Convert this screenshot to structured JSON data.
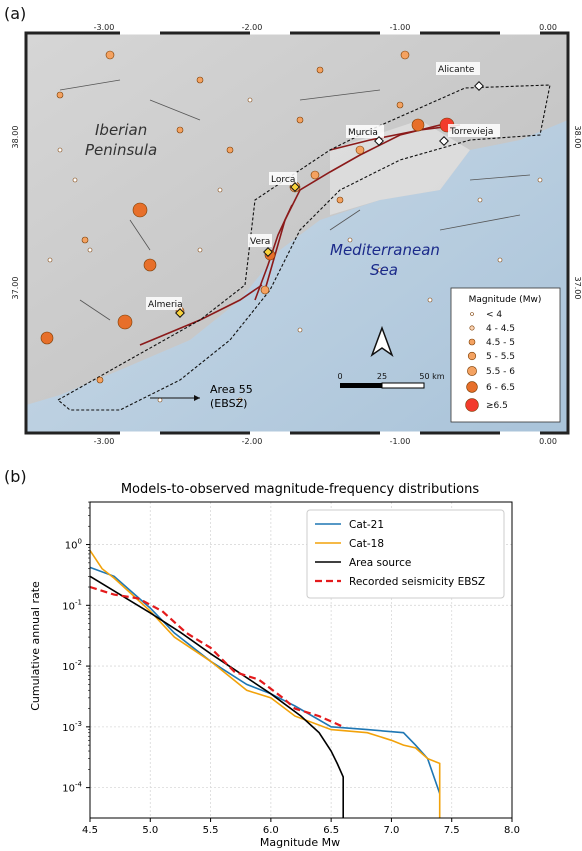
{
  "panel_a_label": "(a)",
  "panel_b_label": "(b)",
  "map": {
    "lon_ticks": [
      "-3.00",
      "-2.00",
      "-1.00",
      "0.00"
    ],
    "lat_ticks": [
      "38.00",
      "37.00"
    ],
    "region_labels": {
      "iberian": "Iberian",
      "peninsula": "Peninsula",
      "mediterranean": "Mediterranean",
      "sea": "Sea"
    },
    "cities": [
      "Alicante",
      "Murcia",
      "Torrevieja",
      "Lorca",
      "Vera",
      "Almeria"
    ],
    "area_label_line1": "Area 55",
    "area_label_line2": "(EBSZ)",
    "scale_labels": [
      "0",
      "25",
      "50 km"
    ],
    "legend": {
      "title": "Magnitude (Mw)",
      "items": [
        "< 4",
        "4 - 4.5",
        "4.5 - 5",
        "5 - 5.5",
        "5.5 - 6",
        "6 - 6.5",
        "≥6.5"
      ]
    },
    "colors": {
      "sea": "#b9cfe0",
      "land": "#c9c9c9",
      "fault": "#8b1a1a",
      "zone": "#111111"
    }
  },
  "chart_data": {
    "type": "line",
    "title": "Models-to-observed magnitude-frequency distributions",
    "xlabel": "Magnitude Mw",
    "ylabel": "Cumulative annual rate",
    "xlim": [
      4.5,
      8.0
    ],
    "ylim_log10": [
      -4.5,
      0.7
    ],
    "yscale": "log",
    "grid": true,
    "legend_position": "top-right",
    "x_tick_labels": [
      "4.5",
      "5.0",
      "5.5",
      "6.0",
      "6.5",
      "7.0",
      "7.5",
      "8.0"
    ],
    "series": [
      {
        "name": "Cat-21",
        "color": "#1f77b4",
        "dash": "",
        "x": [
          4.5,
          4.7,
          5.0,
          5.2,
          5.5,
          5.8,
          6.0,
          6.2,
          6.5,
          6.8,
          7.1,
          7.2,
          7.3,
          7.4
        ],
        "y": [
          0.42,
          0.3,
          0.09,
          0.035,
          0.012,
          0.005,
          0.0035,
          0.0022,
          0.001,
          0.0009,
          0.0008,
          0.0005,
          0.0003,
          8e-05
        ]
      },
      {
        "name": "Cat-18",
        "color": "#f2a20a",
        "dash": "",
        "x": [
          4.5,
          4.6,
          4.7,
          5.0,
          5.2,
          5.5,
          5.8,
          6.0,
          6.2,
          6.5,
          6.8,
          7.0,
          7.1,
          7.2,
          7.3,
          7.4,
          7.4
        ],
        "y": [
          0.8,
          0.4,
          0.28,
          0.08,
          0.03,
          0.012,
          0.004,
          0.003,
          0.0015,
          0.0009,
          0.0008,
          0.0006,
          0.0005,
          0.00045,
          0.0003,
          0.00025,
          3e-05
        ]
      },
      {
        "name": "Area source",
        "color": "#000000",
        "dash": "",
        "x": [
          4.5,
          4.75,
          5.0,
          5.25,
          5.5,
          5.75,
          6.0,
          6.25,
          6.4,
          6.5,
          6.55,
          6.6,
          6.6
        ],
        "y": [
          0.3,
          0.15,
          0.075,
          0.036,
          0.016,
          0.0075,
          0.0035,
          0.0015,
          0.0008,
          0.0004,
          0.00025,
          0.00015,
          3e-05
        ]
      },
      {
        "name": "Recorded seismicity EBSZ",
        "color": "#e41a1c",
        "dash": "7,4",
        "x": [
          4.5,
          4.7,
          4.9,
          5.1,
          5.3,
          5.5,
          5.7,
          5.9,
          6.1,
          6.2,
          6.4,
          6.6
        ],
        "y": [
          0.2,
          0.15,
          0.13,
          0.08,
          0.035,
          0.02,
          0.008,
          0.006,
          0.003,
          0.002,
          0.0015,
          0.001
        ]
      }
    ]
  }
}
